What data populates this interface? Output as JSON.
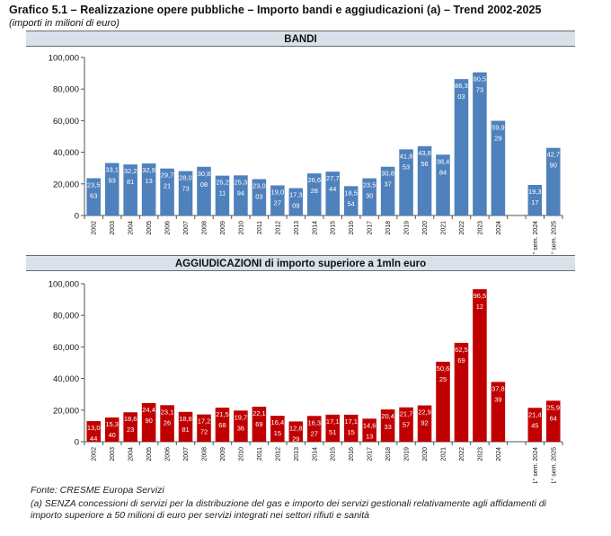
{
  "header": {
    "title": "Grafico 5.1 – Realizzazione opere pubbliche – Importo bandi e aggiudicazioni (a) – Trend 2002-2025",
    "subtitle": "(importi in milioni di euro)"
  },
  "footer": {
    "source": "Fonte: CRESME Europa Servizi",
    "note_line1": "(a) SENZA concessioni di servizi per la distribuzione del gas e importo dei servizi gestionali relativamente agli affidamenti di",
    "note_line2": "importo superiore a 50 milioni di euro per servizi integrati nei settori rifiuti e sanità"
  },
  "colors": {
    "bandi_bar": "#4f81bd",
    "aggiudicazioni_bar": "#c00000",
    "header_background": "#d9e1ea"
  },
  "chart_data": [
    {
      "type": "bar",
      "title": "BANDI",
      "categories": [
        "2002",
        "2003",
        "2004",
        "2005",
        "2006",
        "2007",
        "2008",
        "2009",
        "2010",
        "2011",
        "2012",
        "2013",
        "2014",
        "2015",
        "2016",
        "2017",
        "2018",
        "2019",
        "2020",
        "2021",
        "2022",
        "2023",
        "2024",
        "",
        "1° sem. 2024",
        "1° sem. 2025"
      ],
      "values": [
        23563,
        33193,
        32281,
        32913,
        29721,
        28073,
        30808,
        25211,
        25394,
        23003,
        19027,
        17309,
        26628,
        27744,
        18554,
        23530,
        30837,
        41853,
        43856,
        38484,
        86303,
        90573,
        59929,
        null,
        19317,
        42790
      ],
      "labels_line1": [
        "23,5",
        "33,1",
        "32,2",
        "32,9",
        "29,7",
        "28,0",
        "30,8",
        "25,2",
        "25,3",
        "23,0",
        "19,0",
        "17,3",
        "26,6",
        "27,7",
        "18,5",
        "23,5",
        "30,8",
        "41,8",
        "43,8",
        "38,4",
        "86,3",
        "90,5",
        "59,9",
        "",
        "19,3",
        "42,7"
      ],
      "labels_line2": [
        "63",
        "93",
        "81",
        "13",
        "21",
        "73",
        "08",
        "11",
        "94",
        "03",
        "27",
        "09",
        "28",
        "44",
        "54",
        "30",
        "37",
        "53",
        "56",
        "84",
        "03",
        "73",
        "29",
        "",
        "17",
        "90"
      ],
      "y_ticks": [
        "0",
        "20,000",
        "40,000",
        "60,000",
        "80,000",
        "100,000"
      ],
      "ylim": [
        0,
        100000
      ],
      "grid": false,
      "legend": false
    },
    {
      "type": "bar",
      "title": "AGGIUDICAZIONI di importo superiore a 1mln euro",
      "categories": [
        "2002",
        "2003",
        "2004",
        "2005",
        "2006",
        "2007",
        "2008",
        "2009",
        "2010",
        "2011",
        "2012",
        "2013",
        "2014",
        "2015",
        "2016",
        "2017",
        "2018",
        "2019",
        "2020",
        "2021",
        "2022",
        "2023",
        "2024",
        "",
        "1° sem. 2024",
        "1° sem. 2025"
      ],
      "values": [
        13044,
        15340,
        18623,
        24490,
        23126,
        18881,
        17272,
        21568,
        19736,
        22169,
        16415,
        12829,
        16327,
        17151,
        17115,
        14613,
        20433,
        21757,
        22992,
        50625,
        62569,
        96512,
        37839,
        null,
        21445,
        25964
      ],
      "labels_line1": [
        "13,0",
        "15,3",
        "18,6",
        "24,4",
        "23,1",
        "18,8",
        "17,2",
        "21,5",
        "19,7",
        "22,1",
        "16,4",
        "12,8",
        "16,3",
        "17,1",
        "17,1",
        "14,6",
        "20,4",
        "21,7",
        "22,9",
        "50,6",
        "62,5",
        "96,5",
        "37,8",
        "",
        "21,4",
        "25,9"
      ],
      "labels_line2": [
        "44",
        "40",
        "23",
        "90",
        "26",
        "81",
        "72",
        "68",
        "36",
        "69",
        "15",
        "29",
        "27",
        "51",
        "15",
        "13",
        "33",
        "57",
        "92",
        "25",
        "69",
        "12",
        "39",
        "",
        "45",
        "64"
      ],
      "y_ticks": [
        "0",
        "20,000",
        "40,000",
        "60,000",
        "80,000",
        "100,000"
      ],
      "ylim": [
        0,
        100000
      ],
      "grid": false,
      "legend": false
    }
  ]
}
